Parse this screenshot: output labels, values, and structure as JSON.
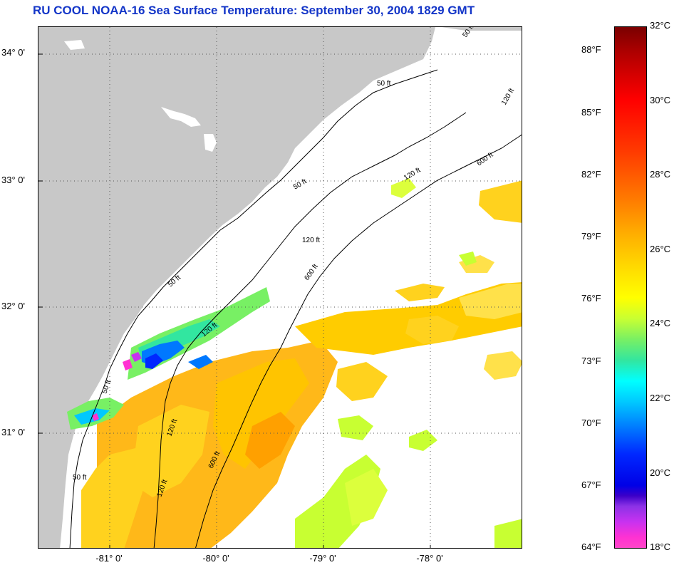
{
  "title": "RU COOL  NOAA-16  Sea Surface Temperature:  September 30, 2004 1829 GMT",
  "latitude_labels": [
    "34° 0'",
    "33° 0'",
    "32° 0'",
    "31° 0'"
  ],
  "longitude_labels": [
    "-81° 0'",
    "-80° 0'",
    "-79° 0'",
    "-78° 0'"
  ],
  "contours": {
    "c50_a": "50 ft",
    "c50_b": "50 ft",
    "c50_c": "50 ft",
    "c50_d": "50 ft",
    "c50_e": "50 ft",
    "c50_f": "50 ft",
    "c120_a": "120 ft",
    "c120_b": "120 ft",
    "c120_c": "120 ft",
    "c120_d": "120 ft",
    "c120_e": "120 ft",
    "c120_f": "120 ft",
    "c600_a": "600 ft",
    "c600_b": "600 ft",
    "c600_c": "600 ft"
  },
  "colorbar": {
    "fahrenheit": [
      "88°F",
      "85°F",
      "82°F",
      "79°F",
      "76°F",
      "73°F",
      "70°F",
      "67°F",
      "64°F"
    ],
    "celsius": [
      "32°C",
      "30°C",
      "28°C",
      "26°C",
      "24°C",
      "22°C",
      "20°C",
      "18°C"
    ]
  },
  "colors": {
    "title": "#1436c8",
    "land": "#c8c8c8",
    "ocean_nodata": "#ffffff",
    "sst_warm": "#ffb000",
    "sst_mid": "#ffe000",
    "sst_cool": "#78f064",
    "sst_cold": "#0028ff"
  }
}
